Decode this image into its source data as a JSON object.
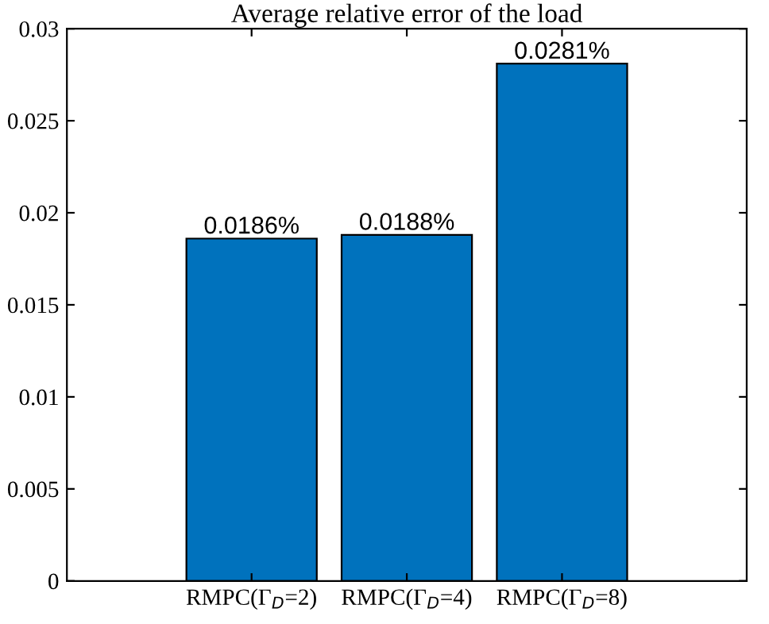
{
  "chart_data": {
    "type": "bar",
    "title": "Average relative error of the load",
    "categories": [
      "RMPC(Γ$_{D}$=2)",
      "RMPC(Γ$_{D}$=4)",
      "RMPC(Γ$_{D}$=8)"
    ],
    "values": [
      0.0186,
      0.0188,
      0.0281
    ],
    "value_labels": [
      "0.0186%",
      "0.0188%",
      "0.0281%"
    ],
    "color": "#0072bd",
    "ylim": [
      0,
      0.03
    ],
    "yticks": [
      0,
      0.005,
      0.01,
      0.015,
      0.02,
      0.025,
      0.03
    ],
    "grid": false,
    "legend": false
  }
}
